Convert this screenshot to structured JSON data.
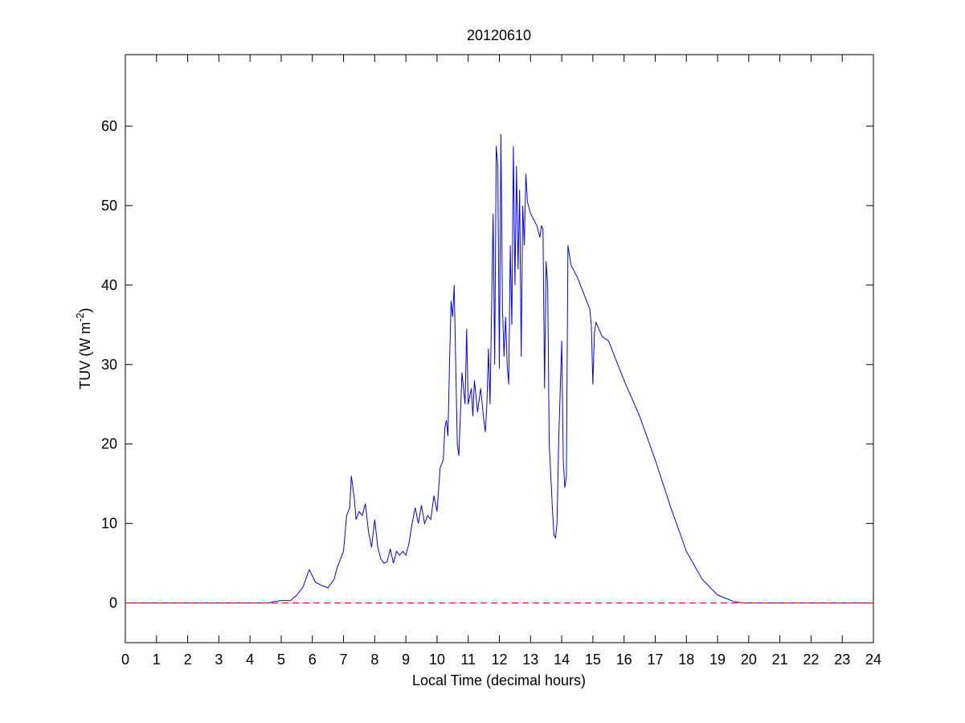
{
  "chart_data": {
    "type": "line",
    "title": "20120610",
    "xlabel": "Local Time (decimal hours)",
    "ylabel": [
      "TUV (W m",
      "-2",
      ")"
    ],
    "xlim": [
      0,
      24
    ],
    "ylim": [
      -5,
      69
    ],
    "xticks": [
      0,
      1,
      2,
      3,
      4,
      5,
      6,
      7,
      8,
      9,
      10,
      11,
      12,
      13,
      14,
      15,
      16,
      17,
      18,
      19,
      20,
      21,
      22,
      23,
      24
    ],
    "yticks": [
      0,
      10,
      20,
      30,
      40,
      50,
      60
    ],
    "hline": {
      "value": 0,
      "color": "#ff0000",
      "dashed": true
    },
    "series": [
      {
        "color": "#0000ff",
        "x": [
          0,
          4.6,
          4.8,
          5.0,
          5.3,
          5.5,
          5.7,
          5.9,
          6.1,
          6.3,
          6.5,
          6.7,
          6.8,
          7.0,
          7.1,
          7.2,
          7.25,
          7.35,
          7.4,
          7.5,
          7.6,
          7.7,
          7.8,
          7.9,
          8.0,
          8.1,
          8.2,
          8.3,
          8.4,
          8.5,
          8.6,
          8.7,
          8.8,
          8.9,
          9.0,
          9.1,
          9.2,
          9.3,
          9.4,
          9.5,
          9.6,
          9.7,
          9.8,
          9.9,
          10.0,
          10.1,
          10.2,
          10.25,
          10.3,
          10.35,
          10.4,
          10.45,
          10.5,
          10.55,
          10.6,
          10.65,
          10.7,
          10.8,
          10.9,
          10.95,
          11.0,
          11.1,
          11.15,
          11.2,
          11.3,
          11.4,
          11.5,
          11.55,
          11.6,
          11.65,
          11.7,
          11.8,
          11.85,
          11.9,
          11.95,
          12.0,
          12.05,
          12.1,
          12.15,
          12.2,
          12.25,
          12.3,
          12.35,
          12.4,
          12.45,
          12.5,
          12.55,
          12.6,
          12.65,
          12.7,
          12.75,
          12.8,
          12.85,
          12.9,
          13.0,
          13.2,
          13.3,
          13.35,
          13.4,
          13.45,
          13.5,
          13.55,
          13.6,
          13.7,
          13.75,
          13.8,
          13.85,
          13.9,
          14.0,
          14.05,
          14.1,
          14.15,
          14.2,
          14.3,
          14.5,
          14.7,
          14.9,
          14.95,
          15.0,
          15.05,
          15.1,
          15.3,
          15.5,
          15.7,
          16.0,
          16.5,
          17.0,
          17.5,
          18.0,
          18.5,
          19.0,
          19.5,
          19.8,
          24
        ],
        "values": [
          0,
          0,
          0.2,
          0.3,
          0.3,
          1.0,
          2.0,
          4.2,
          2.6,
          2.2,
          1.9,
          3.0,
          4.5,
          6.5,
          11,
          12,
          16,
          13,
          10.5,
          11.5,
          11,
          12.5,
          9,
          7,
          10.5,
          7,
          5.5,
          5,
          5.2,
          6.8,
          5,
          6.5,
          6,
          6.5,
          6,
          7.5,
          10,
          12,
          10,
          12.3,
          10,
          11,
          10.5,
          13.5,
          11.5,
          17,
          18,
          22,
          23,
          21,
          30,
          38,
          36,
          40,
          30,
          20,
          18.5,
          29,
          25,
          34.5,
          25,
          27,
          23.5,
          28,
          24,
          27,
          23,
          21.5,
          25,
          32,
          25,
          49,
          30,
          57.5,
          55,
          29.5,
          59,
          37,
          31,
          36,
          30,
          27.5,
          45,
          35,
          57.5,
          40,
          55,
          42,
          52,
          31,
          50,
          45,
          54,
          50.5,
          49,
          47.5,
          46,
          47.5,
          47,
          27,
          43,
          40,
          20,
          12,
          8.5,
          8.2,
          10,
          20,
          33,
          18,
          14.5,
          16,
          45,
          42.5,
          41,
          39,
          37,
          35,
          27.5,
          34,
          35.3,
          33.5,
          33,
          31,
          28,
          23.5,
          18,
          12,
          6.5,
          3.0,
          1.0,
          0.2,
          0,
          0
        ]
      }
    ]
  }
}
